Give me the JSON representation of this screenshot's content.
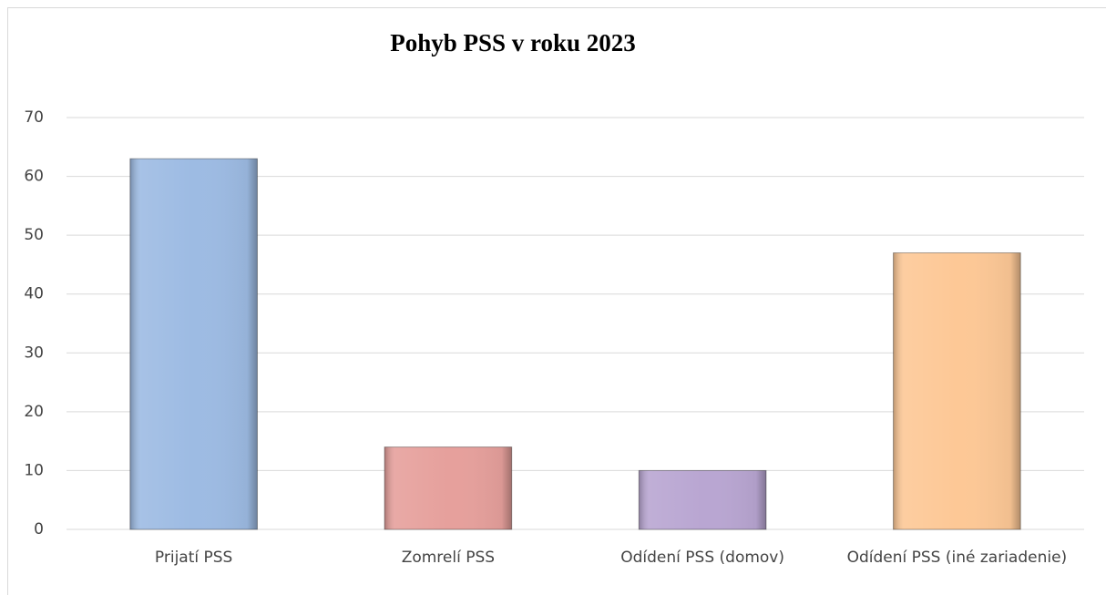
{
  "chart_data": {
    "type": "bar",
    "title": "Pohyb PSS v roku 2023",
    "categories": [
      "Prijatí PSS",
      "Zomrelí PSS",
      "Odídení PSS (domov)",
      "Odídení PSS (iné zariadenie)"
    ],
    "values": [
      63,
      14,
      10,
      47
    ],
    "colors": [
      "#9dbbe3",
      "#e6a09c",
      "#b9a6d2",
      "#fdc896"
    ],
    "ylim": [
      0,
      70
    ],
    "yticks": [
      0,
      10,
      20,
      30,
      40,
      50,
      60,
      70
    ],
    "grid": true
  }
}
